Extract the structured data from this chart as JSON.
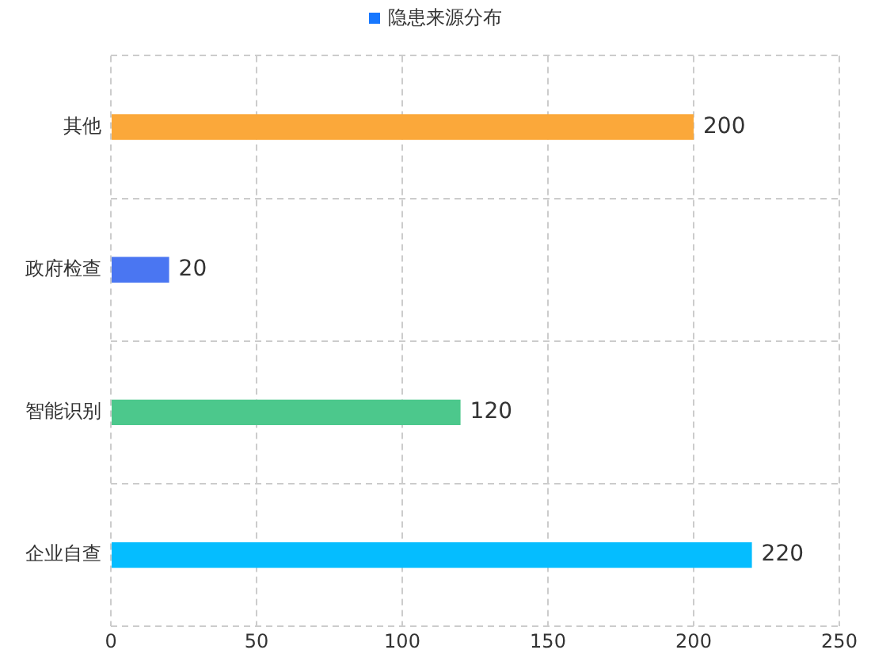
{
  "chart_data": {
    "type": "bar",
    "orientation": "horizontal",
    "categories": [
      "其他",
      "政府检查",
      "智能识别",
      "企业自查"
    ],
    "series": [
      {
        "name": "隐患来源分布",
        "color": "#1677ff",
        "colors": [
          "#fba83a",
          "#4a76f2",
          "#4cc88c",
          "#05bdff"
        ],
        "values": [
          200,
          20,
          120,
          220
        ]
      }
    ],
    "xlim": [
      0,
      250
    ],
    "xticks": [
      0,
      50,
      100,
      150,
      200,
      250
    ],
    "grid": true,
    "legend": "top",
    "data_labels": true
  }
}
